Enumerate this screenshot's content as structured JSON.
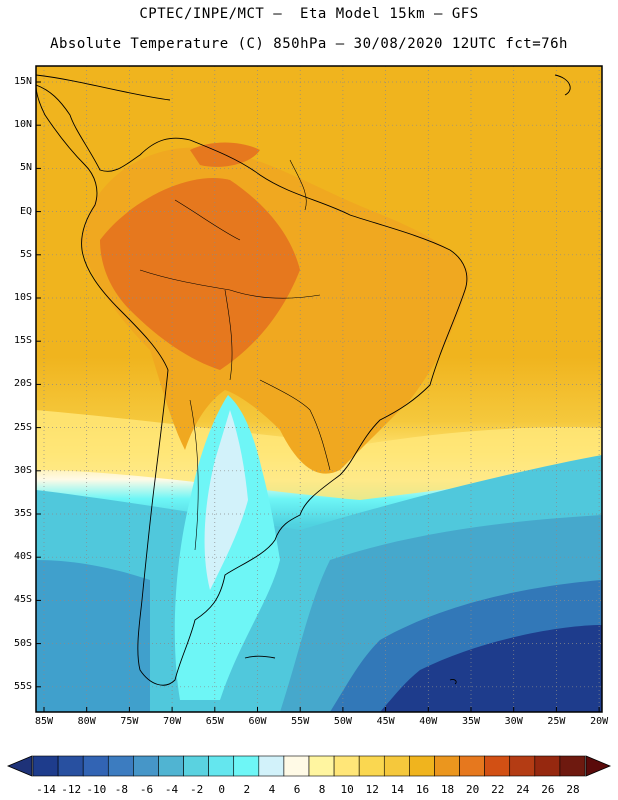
{
  "title": {
    "line1": "CPTEC/INPE/MCT –  Eta Model 15km – GFS",
    "line2": "Absolute Temperature (C) 850hPa – 30/08/2020 12UTC fct=76h"
  },
  "map": {
    "lat_labels": [
      "15N",
      "10N",
      "5N",
      "EQ",
      "5S",
      "10S",
      "15S",
      "20S",
      "25S",
      "30S",
      "35S",
      "40S",
      "45S",
      "50S",
      "55S"
    ],
    "lon_labels": [
      "85W",
      "80W",
      "75W",
      "70W",
      "65W",
      "60W",
      "55W",
      "50W",
      "45W",
      "40W",
      "35W",
      "30W",
      "25W",
      "20W"
    ]
  },
  "colorbar": {
    "ticks": [
      "-14",
      "-12",
      "-10",
      "-8",
      "-6",
      "-4",
      "-2",
      "0",
      "2",
      "4",
      "6",
      "8",
      "10",
      "12",
      "14",
      "16",
      "18",
      "20",
      "22",
      "24",
      "26",
      "28"
    ],
    "colors": [
      "#1e3c8c",
      "#2850a0",
      "#3264b4",
      "#3c7cc0",
      "#4696c8",
      "#50b4d2",
      "#5ad2e0",
      "#64e6ee",
      "#6ef6f6",
      "#d2f2fa",
      "#fffae6",
      "#fff5a0",
      "#ffe678",
      "#fad750",
      "#f5c83c",
      "#f0b41e",
      "#eb961e",
      "#e6781e",
      "#d25014",
      "#b43c14",
      "#96280f",
      "#6e190f"
    ],
    "left_arrow_color": "#1e3278",
    "right_arrow_color": "#5a0a0a"
  },
  "field_colors": {
    "warm_land": "#e6781e",
    "tropical_orange": "#f0b41e",
    "subtropical_yellow": "#ffe678",
    "cold_cyan": "#50b4d2",
    "deep_cold": "#1e3c8c",
    "cold_tongue": "#6ef6f6"
  }
}
